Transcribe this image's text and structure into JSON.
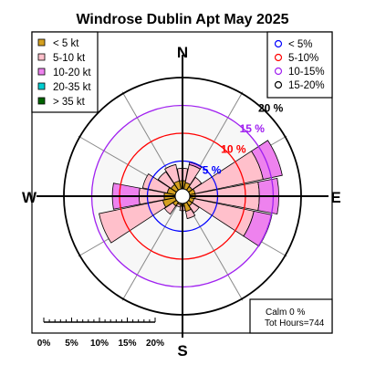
{
  "chart_data": {
    "type": "windrose",
    "title": "Windrose  Dublin Apt May 2025",
    "directions": [
      "N",
      "E",
      "S",
      "W"
    ],
    "sector_count": 16,
    "sector_angles": [
      0,
      22.5,
      45,
      67.5,
      90,
      112.5,
      135,
      157.5,
      180,
      202.5,
      225,
      247.5,
      270,
      292.5,
      315,
      337.5
    ],
    "speed_bins": [
      {
        "label": "< 5  kt",
        "color": "#d4a020"
      },
      {
        "label": "5-10 kt",
        "color": "#ffc0cb"
      },
      {
        "label": "10-20 kt",
        "color": "#ee82ee"
      },
      {
        "label": "20-35 kt",
        "color": "#00ced1"
      },
      {
        "label": "> 35 kt",
        "color": "#006400"
      }
    ],
    "frequency_rings": [
      {
        "label": "< 5%",
        "value": 5,
        "color": "#0000ff"
      },
      {
        "label": "5-10%",
        "value": 10,
        "color": "#ff0000"
      },
      {
        "label": "10-15%",
        "value": 15,
        "color": "#a020f0"
      },
      {
        "label": "15-20%",
        "value": 20,
        "color": "#000000"
      }
    ],
    "ring_labels": [
      "5 %",
      "10 %",
      "15 %",
      "20 %"
    ],
    "sectors": [
      {
        "dir": 0,
        "values": [
          1.5,
          2.2,
          0,
          0,
          0
        ]
      },
      {
        "dir": 22.5,
        "values": [
          1.2,
          3.3,
          0.4,
          0,
          0
        ]
      },
      {
        "dir": 45,
        "values": [
          0.8,
          2.0,
          0,
          0,
          0
        ]
      },
      {
        "dir": 67.5,
        "values": [
          1.0,
          12.5,
          3.5,
          0,
          0
        ]
      },
      {
        "dir": 90,
        "values": [
          1.0,
          11.5,
          3.5,
          0,
          0
        ]
      },
      {
        "dir": 112.5,
        "values": [
          0.8,
          11.0,
          3.3,
          0,
          0
        ]
      },
      {
        "dir": 135,
        "values": [
          0.8,
          1.5,
          0,
          0,
          0
        ]
      },
      {
        "dir": 157.5,
        "values": [
          1.5,
          1.3,
          0,
          0,
          0
        ]
      },
      {
        "dir": 180,
        "values": [
          0.5,
          0.8,
          0,
          0,
          0
        ]
      },
      {
        "dir": 202.5,
        "values": [
          0.3,
          0.4,
          0,
          0,
          0
        ]
      },
      {
        "dir": 225,
        "values": [
          0.8,
          1.8,
          0,
          0,
          0
        ]
      },
      {
        "dir": 247.5,
        "values": [
          2.3,
          11.7,
          0,
          0,
          0
        ]
      },
      {
        "dir": 270,
        "values": [
          2.0,
          4.5,
          4.8,
          0,
          0
        ]
      },
      {
        "dir": 292.5,
        "values": [
          1.5,
          4.5,
          0,
          0,
          0
        ]
      },
      {
        "dir": 315,
        "values": [
          1.2,
          2.8,
          0,
          0,
          0
        ]
      },
      {
        "dir": 337.5,
        "values": [
          1.5,
          3.0,
          0,
          0,
          0
        ]
      }
    ],
    "scale_bar": {
      "ticks": [
        "0%",
        "5%",
        "10%",
        "15%",
        "20%"
      ]
    },
    "footer": {
      "calm": "Calm 0 %",
      "total_hours": "Tot Hours=744"
    }
  }
}
